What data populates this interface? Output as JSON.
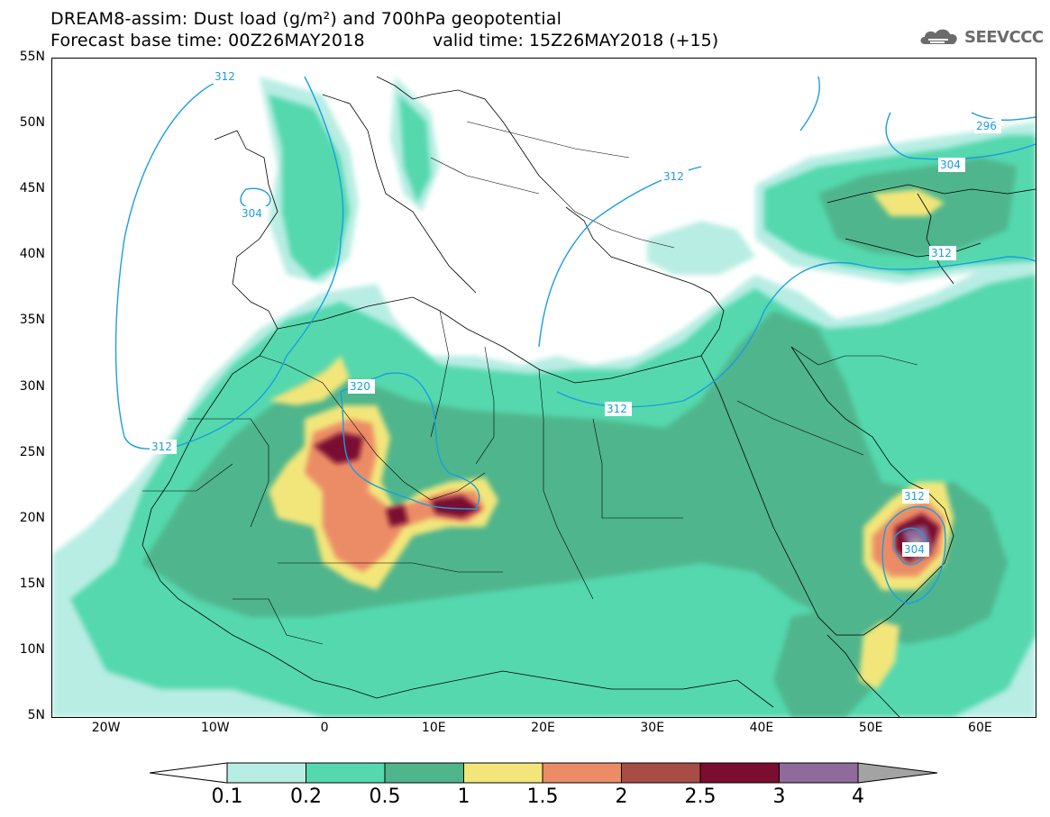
{
  "title": {
    "line1": "DREAM8-assim: Dust load (g/m²) and 700hPa geopotential",
    "line2": "Forecast base time: 00Z26MAY2018",
    "valid": "valid time: 15Z26MAY2018 (+15)"
  },
  "logo": {
    "text": "SEEVCCC",
    "icon": "cloud-icon"
  },
  "map": {
    "lat_labels": [
      "55N",
      "50N",
      "45N",
      "40N",
      "35N",
      "30N",
      "25N",
      "20N",
      "15N",
      "10N",
      "5N"
    ],
    "lon_labels": [
      "20W",
      "10W",
      "0",
      "10E",
      "20E",
      "30E",
      "40E",
      "50E",
      "60E"
    ],
    "extent": {
      "lon": [
        -25,
        65
      ],
      "lat": [
        5,
        55
      ]
    },
    "contour_labels": [
      "312",
      "304",
      "320",
      "312",
      "312",
      "296",
      "304",
      "312",
      "312",
      "304"
    ]
  },
  "colorbar": {
    "ticks": [
      "0.1",
      "0.2",
      "0.5",
      "1",
      "1.5",
      "2",
      "2.5",
      "3",
      "4"
    ],
    "colors": [
      "#b8ede3",
      "#55d8ae",
      "#4fb58c",
      "#f2e67a",
      "#ec8c66",
      "#a84c46",
      "#7a0d30",
      "#8f6b9c",
      "#a3a3a3"
    ]
  }
}
